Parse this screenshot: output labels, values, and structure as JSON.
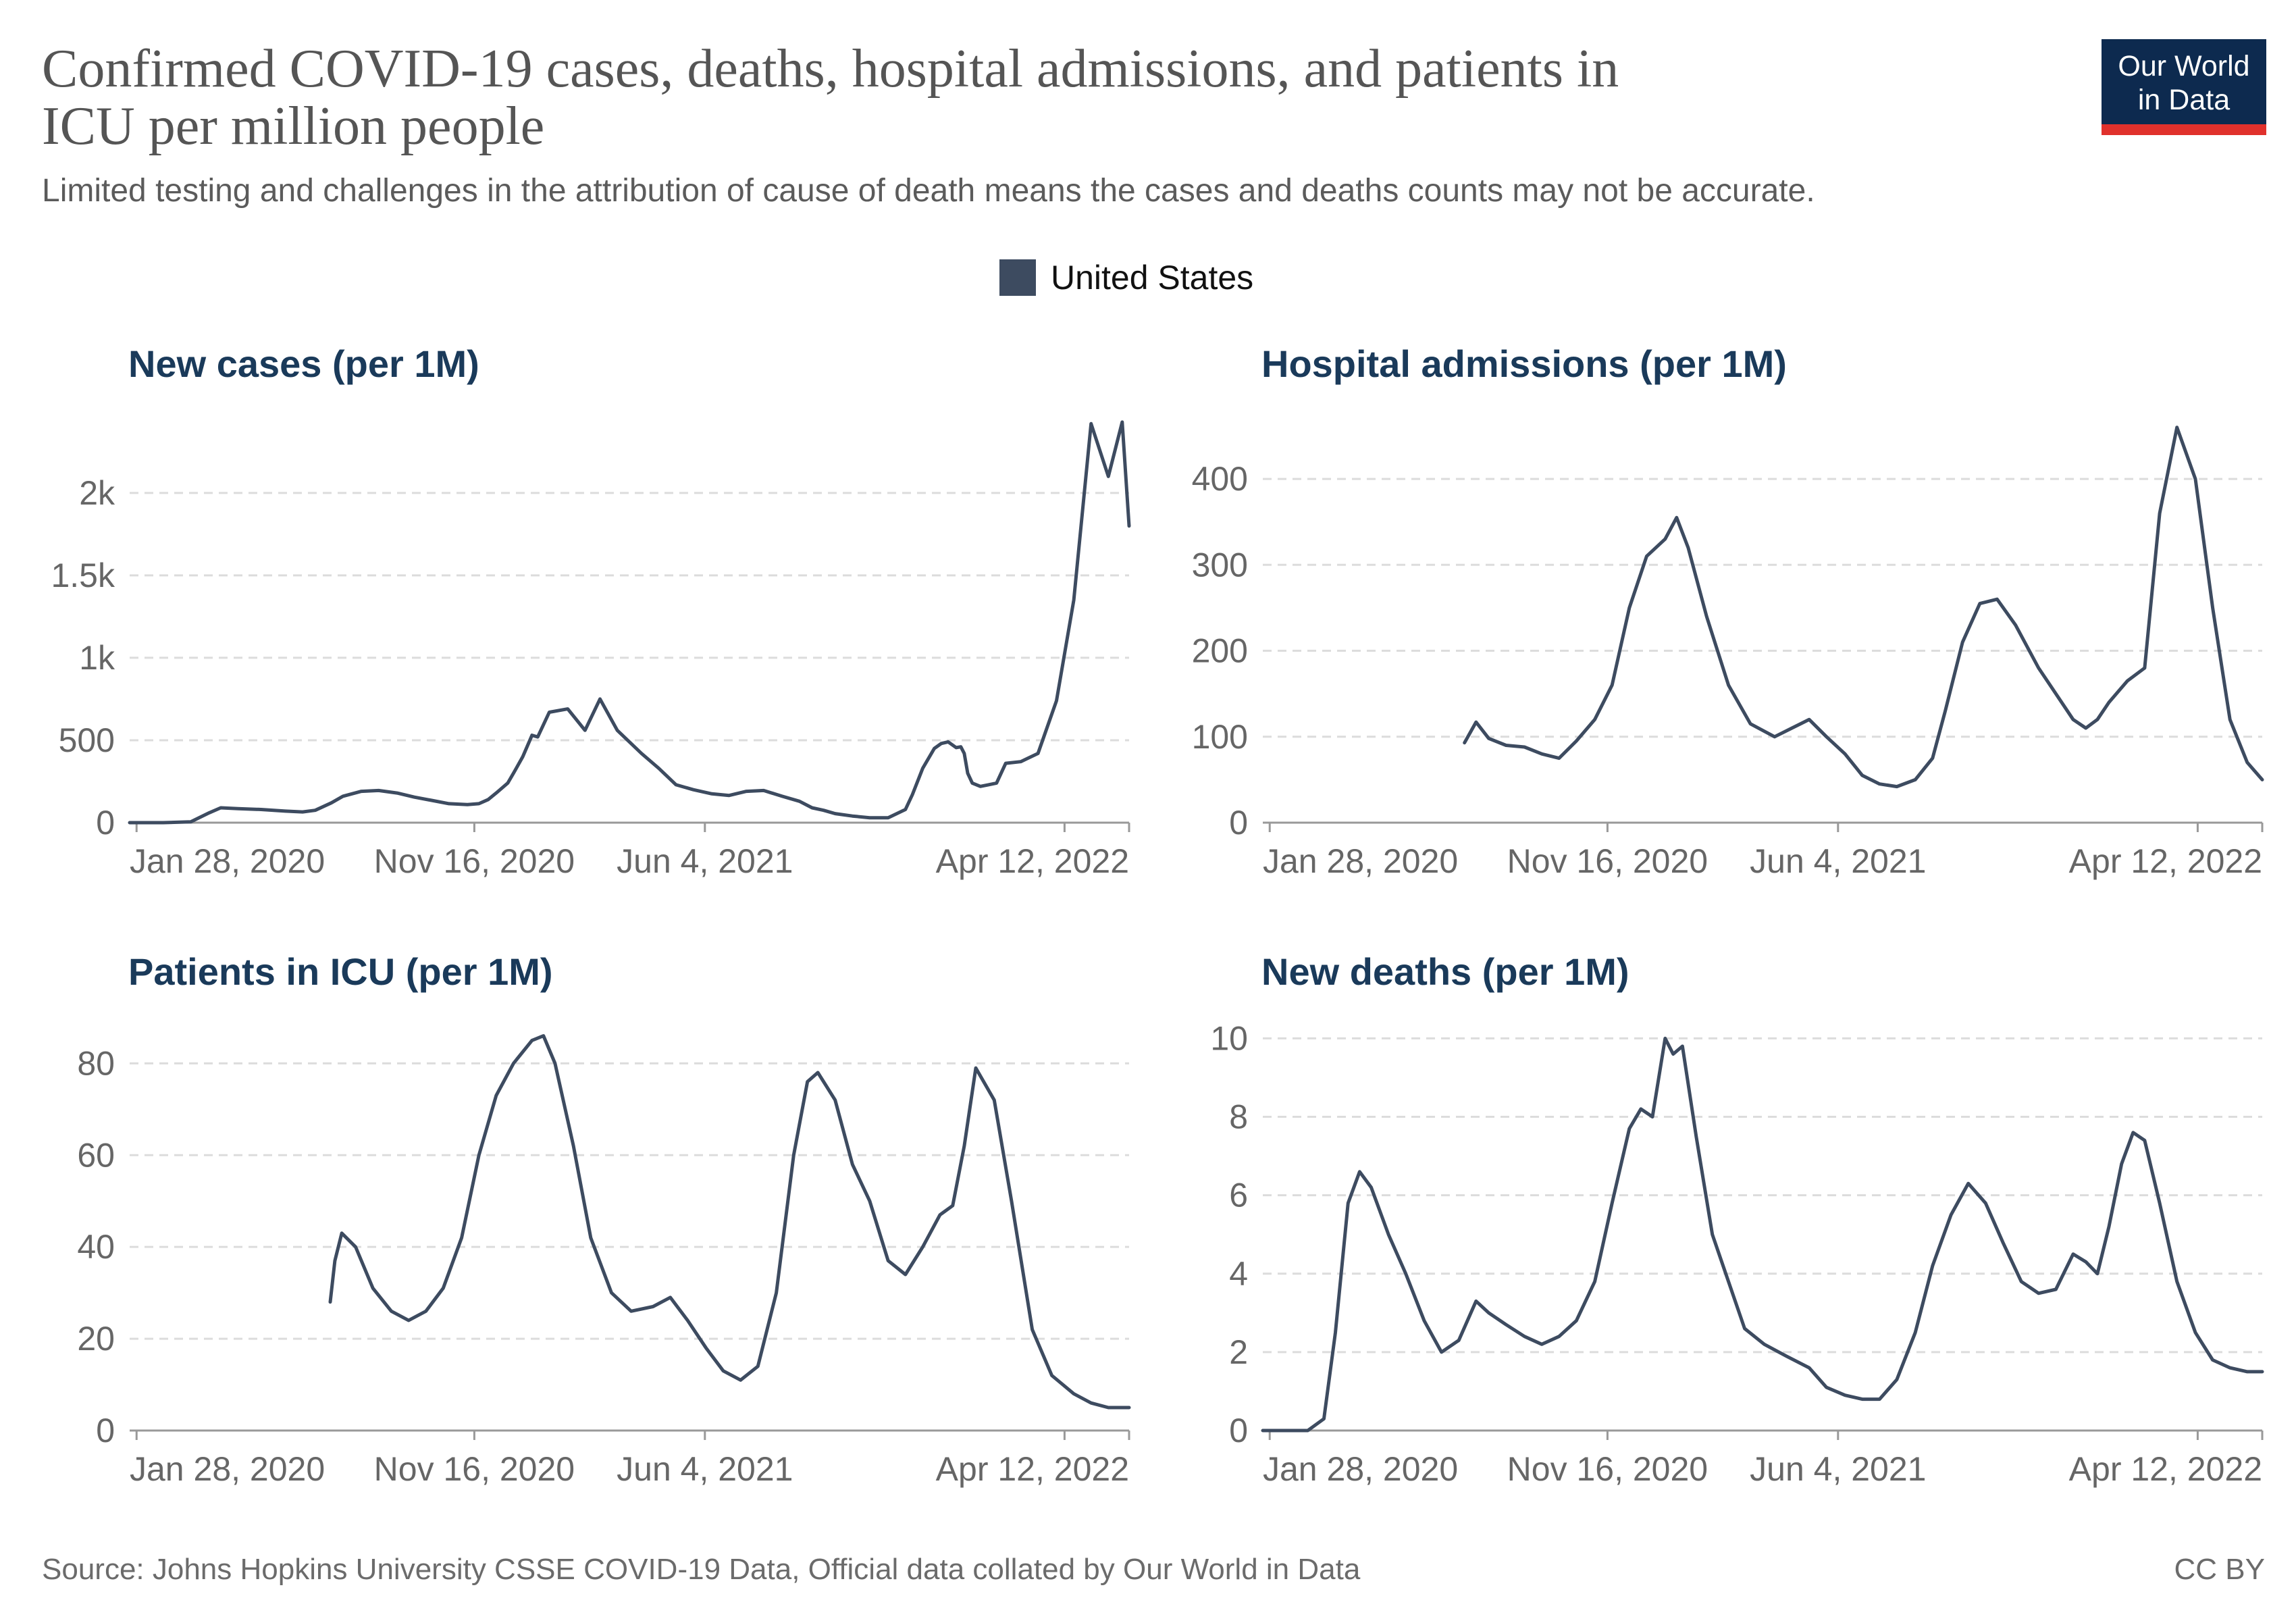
{
  "header": {
    "title_line1": "Confirmed COVID-19 cases, deaths, hospital admissions, and patients in",
    "title_line2": "ICU per million people",
    "subtitle": "Limited testing and challenges in the attribution of cause of death means the cases and deaths counts may not be accurate."
  },
  "logo": {
    "line1": "Our World",
    "line2": "in Data",
    "bg": "#0d2a4f",
    "stripe": "#e0312c"
  },
  "legend": {
    "label": "United States",
    "color": "#3d4b60"
  },
  "footer": {
    "source": "Source: Johns Hopkins University CSSE COVID-19 Data, Official data collated by Our World in Data",
    "license": "CC BY"
  },
  "colors": {
    "line": "#3d4b60",
    "title": "#1a3a5a",
    "grid": "#dcdcdc",
    "axis": "#999999"
  },
  "chart_data": [
    {
      "type": "line",
      "title": "New cases (per 1M)",
      "series_name": "United States",
      "x_start": "2020-01-22",
      "x_end": "2022-06-07",
      "x_ticks": [
        "2020-01-28",
        "2020-11-16",
        "2021-06-04",
        "2022-04-12"
      ],
      "x_tick_labels": [
        "Jan 28, 2020",
        "Nov 16, 2020",
        "Jun 4, 2021",
        "Apr 12, 2022"
      ],
      "y_ticks": [
        0,
        500,
        1000,
        1500,
        2000
      ],
      "y_tick_labels": [
        "0",
        "500",
        "1k",
        "1.5k",
        "2k"
      ],
      "ylim": [
        0,
        2450
      ],
      "x": [
        "2020-01-22",
        "2020-02-20",
        "2020-03-15",
        "2020-03-31",
        "2020-04-10",
        "2020-04-25",
        "2020-05-15",
        "2020-06-05",
        "2020-06-20",
        "2020-07-01",
        "2020-07-15",
        "2020-07-25",
        "2020-08-10",
        "2020-08-25",
        "2020-09-10",
        "2020-09-25",
        "2020-10-10",
        "2020-10-25",
        "2020-11-10",
        "2020-11-20",
        "2020-11-28",
        "2020-12-05",
        "2020-12-15",
        "2020-12-20",
        "2020-12-28",
        "2021-01-05",
        "2021-01-10",
        "2021-01-20",
        "2021-02-05",
        "2021-02-20",
        "2021-03-05",
        "2021-03-20",
        "2021-04-10",
        "2021-04-25",
        "2021-05-10",
        "2021-05-25",
        "2021-06-10",
        "2021-06-25",
        "2021-07-10",
        "2021-07-25",
        "2021-08-10",
        "2021-08-25",
        "2021-09-05",
        "2021-09-15",
        "2021-09-25",
        "2021-10-10",
        "2021-10-25",
        "2021-11-10",
        "2021-11-25",
        "2021-12-01",
        "2021-12-10",
        "2021-12-20",
        "2021-12-26",
        "2022-01-01",
        "2022-01-08",
        "2022-01-12",
        "2022-01-15",
        "2022-01-18",
        "2022-01-22",
        "2022-01-29",
        "2022-02-05",
        "2022-02-12",
        "2022-02-20",
        "2022-03-05",
        "2022-03-20",
        "2022-04-05",
        "2022-04-20",
        "2022-05-05",
        "2022-05-20",
        "2022-06-01",
        "2022-06-07"
      ],
      "values": [
        0,
        0,
        5,
        60,
        90,
        85,
        80,
        70,
        65,
        75,
        120,
        160,
        190,
        195,
        180,
        155,
        135,
        115,
        110,
        115,
        140,
        180,
        240,
        300,
        400,
        530,
        520,
        670,
        690,
        560,
        750,
        560,
        420,
        330,
        230,
        200,
        175,
        165,
        190,
        195,
        160,
        130,
        90,
        75,
        55,
        40,
        30,
        30,
        80,
        170,
        330,
        450,
        480,
        490,
        455,
        460,
        420,
        300,
        240,
        220,
        230,
        240,
        360,
        370,
        420,
        740,
        1350,
        2420,
        2100,
        2430,
        1800
      ],
      "bad_note": "",
      "extra_ignore": ""
    },
    {
      "type": "line",
      "title": "Hospital admissions (per 1M)",
      "series_name": "United States",
      "x_start": "2020-01-22",
      "x_end": "2022-06-07",
      "x_ticks": [
        "2020-01-28",
        "2020-11-16",
        "2021-06-04",
        "2022-04-12"
      ],
      "x_tick_labels": [
        "Jan 28, 2020",
        "Nov 16, 2020",
        "Jun 4, 2021",
        "Apr 12, 2022"
      ],
      "y_ticks": [
        0,
        100,
        200,
        300,
        400
      ],
      "y_tick_labels": [
        "0",
        "100",
        "200",
        "300",
        "400"
      ],
      "ylim": [
        0,
        470
      ],
      "x": [
        "2020-07-15",
        "2020-07-25",
        "2020-08-05",
        "2020-08-20",
        "2020-09-05",
        "2020-09-20",
        "2020-10-05",
        "2020-10-20",
        "2020-11-05",
        "2020-11-20",
        "2020-12-05",
        "2020-12-20",
        "2021-01-05",
        "2021-01-15",
        "2021-01-25",
        "2021-02-10",
        "2021-03-01",
        "2021-03-20",
        "2021-04-10",
        "2021-04-25",
        "2021-05-10",
        "2021-05-25",
        "2021-06-10",
        "2021-06-25",
        "2021-07-10",
        "2021-07-25",
        "2021-08-10",
        "2021-08-25",
        "2021-09-05",
        "2021-09-20",
        "2021-10-05",
        "2021-10-20",
        "2021-11-05",
        "2021-11-25",
        "2021-12-10",
        "2021-12-25",
        "2022-01-05",
        "2022-01-15",
        "2022-01-25",
        "2022-02-10",
        "2022-02-25",
        "2022-03-10",
        "2022-03-25",
        "2022-04-10",
        "2022-04-25",
        "2022-05-10",
        "2022-05-25",
        "2022-06-07"
      ],
      "values": [
        93,
        117,
        98,
        90,
        88,
        80,
        75,
        95,
        120,
        160,
        250,
        310,
        330,
        355,
        320,
        240,
        160,
        115,
        100,
        110,
        120,
        100,
        80,
        55,
        45,
        42,
        50,
        75,
        130,
        210,
        255,
        260,
        230,
        180,
        150,
        120,
        110,
        120,
        140,
        165,
        180,
        360,
        460,
        400,
        250,
        120,
        70,
        50
      ],
      "bad_note": "",
      "extra_ignore": ""
    },
    {
      "type": "line",
      "title": "Patients in ICU (per 1M)",
      "series_name": "United States",
      "x_start": "2020-01-22",
      "x_end": "2022-06-07",
      "x_ticks": [
        "2020-01-28",
        "2020-11-16",
        "2021-06-04",
        "2022-04-12"
      ],
      "x_tick_labels": [
        "Jan 28, 2020",
        "Nov 16, 2020",
        "Jun 4, 2021",
        "Apr 12, 2022"
      ],
      "y_ticks": [
        0,
        20,
        40,
        60,
        80
      ],
      "y_tick_labels": [
        "0",
        "20",
        "40",
        "60",
        "80"
      ],
      "ylim": [
        0,
        88
      ],
      "x": [
        "2020-07-14",
        "2020-07-18",
        "2020-07-24",
        "2020-08-05",
        "2020-08-20",
        "2020-09-05",
        "2020-09-20",
        "2020-10-05",
        "2020-10-20",
        "2020-11-05",
        "2020-11-20",
        "2020-12-05",
        "2020-12-20",
        "2021-01-05",
        "2021-01-15",
        "2021-01-25",
        "2021-02-10",
        "2021-02-25",
        "2021-03-15",
        "2021-04-01",
        "2021-04-20",
        "2021-05-05",
        "2021-05-20",
        "2021-06-05",
        "2021-06-20",
        "2021-07-05",
        "2021-07-20",
        "2021-08-05",
        "2021-08-20",
        "2021-09-01",
        "2021-09-10",
        "2021-09-25",
        "2021-10-10",
        "2021-10-25",
        "2021-11-10",
        "2021-11-25",
        "2021-12-10",
        "2021-12-25",
        "2022-01-05",
        "2022-01-15",
        "2022-01-25",
        "2022-02-10",
        "2022-02-25",
        "2022-03-15",
        "2022-04-01",
        "2022-04-20",
        "2022-05-05",
        "2022-05-20",
        "2022-06-07"
      ],
      "values": [
        28,
        37,
        43,
        40,
        31,
        26,
        24,
        26,
        31,
        42,
        60,
        73,
        80,
        85,
        86,
        80,
        62,
        42,
        30,
        26,
        27,
        29,
        24,
        18,
        13,
        11,
        14,
        30,
        60,
        76,
        78,
        72,
        58,
        50,
        37,
        34,
        40,
        47,
        49,
        62,
        79,
        72,
        50,
        22,
        12,
        8,
        6,
        5,
        5
      ],
      "bad_note": "",
      "extra_ignore": ""
    },
    {
      "type": "line",
      "title": "New deaths (per 1M)",
      "series_name": "United States",
      "x_start": "2020-01-22",
      "x_end": "2022-06-07",
      "x_ticks": [
        "2020-01-28",
        "2020-11-16",
        "2021-06-04",
        "2022-04-12"
      ],
      "x_tick_labels": [
        "Jan 28, 2020",
        "Nov 16, 2020",
        "Jun 4, 2021",
        "Apr 12, 2022"
      ],
      "y_ticks": [
        0,
        2,
        4,
        6,
        8,
        10
      ],
      "y_tick_labels": [
        "0",
        "2",
        "4",
        "6",
        "8",
        "10"
      ],
      "ylim": [
        0,
        10.3
      ],
      "x": [
        "2020-01-22",
        "2020-03-01",
        "2020-03-15",
        "2020-03-25",
        "2020-04-05",
        "2020-04-15",
        "2020-04-25",
        "2020-05-10",
        "2020-05-25",
        "2020-06-10",
        "2020-06-25",
        "2020-07-10",
        "2020-07-25",
        "2020-08-05",
        "2020-08-20",
        "2020-09-05",
        "2020-09-20",
        "2020-10-05",
        "2020-10-20",
        "2020-11-05",
        "2020-11-20",
        "2020-12-05",
        "2020-12-15",
        "2020-12-25",
        "2021-01-05",
        "2021-01-12",
        "2021-01-20",
        "2021-02-01",
        "2021-02-15",
        "2021-03-01",
        "2021-03-15",
        "2021-04-01",
        "2021-04-20",
        "2021-05-10",
        "2021-05-25",
        "2021-06-10",
        "2021-06-25",
        "2021-07-10",
        "2021-07-25",
        "2021-08-10",
        "2021-08-25",
        "2021-09-10",
        "2021-09-25",
        "2021-10-10",
        "2021-10-25",
        "2021-11-10",
        "2021-11-25",
        "2021-12-10",
        "2021-12-25",
        "2022-01-05",
        "2022-01-15",
        "2022-01-25",
        "2022-02-05",
        "2022-02-15",
        "2022-02-25",
        "2022-03-10",
        "2022-03-25",
        "2022-04-10",
        "2022-04-25",
        "2022-05-10",
        "2022-05-25",
        "2022-06-07"
      ],
      "values": [
        0,
        0,
        0.3,
        2.5,
        5.8,
        6.6,
        6.2,
        5.0,
        4.0,
        2.8,
        2.0,
        2.3,
        3.3,
        3.0,
        2.7,
        2.4,
        2.2,
        2.4,
        2.8,
        3.8,
        5.8,
        7.7,
        8.2,
        8.0,
        10.0,
        9.6,
        9.8,
        7.5,
        5.0,
        3.8,
        2.6,
        2.2,
        1.9,
        1.6,
        1.1,
        0.9,
        0.8,
        0.8,
        1.3,
        2.5,
        4.2,
        5.5,
        6.3,
        5.8,
        4.8,
        3.8,
        3.5,
        3.6,
        4.5,
        4.3,
        4.0,
        5.2,
        6.8,
        7.6,
        7.4,
        5.8,
        3.8,
        2.5,
        1.8,
        1.6,
        1.5,
        1.5
      ],
      "bad_note": "",
      "extra_ignore": ""
    }
  ]
}
